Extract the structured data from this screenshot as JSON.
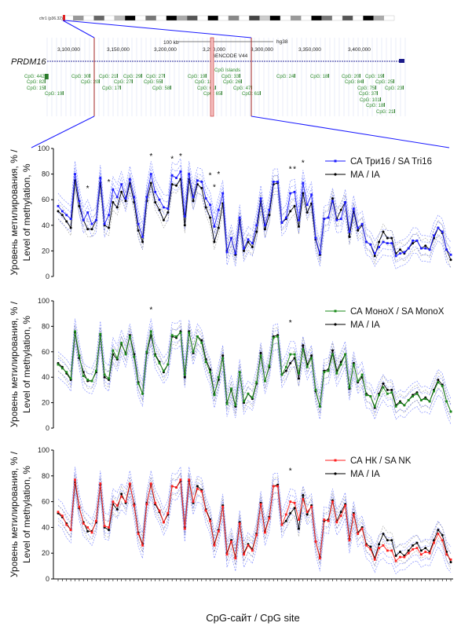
{
  "browser": {
    "chrom_label": "chr1 (p36.32)",
    "gene": "PRDM16",
    "scale_label": "100 kb",
    "assembly": "hg38",
    "gencode": "GENCODE V44",
    "cpg_track": "CpG Islands",
    "positions": [
      "3,100,000",
      "3,150,000",
      "3,200,000",
      "3,250,000",
      "3,300,000",
      "3,350,000",
      "3,400,000"
    ],
    "cpg_labels": [
      "CpG: 442",
      "CpG: 82",
      "CpG: 15",
      "CpG: 19",
      "CpG: 30",
      "CpG: 20",
      "CpG: 21",
      "CpG: 17",
      "CpG: 29",
      "CpG: 27",
      "CpG: 27",
      "CpG: 55",
      "CpG: 58",
      "CpG: 19",
      "CpG: 18",
      "CpG: 61",
      "CpG: 65",
      "CpG: 33",
      "CpG: 26",
      "CpG: 47",
      "CpG: 61",
      "CpG: 24",
      "CpG: 18",
      "CpG: 20",
      "CpG: 84",
      "CpG: 75",
      "CpG: 37",
      "CpG: 101",
      "CpG: 18",
      "CpG: 21",
      "CpG: 19",
      "CpG: 25",
      "CpG: 23"
    ]
  },
  "y_axis_label_ru": "Уровень метилирования, %  /",
  "y_axis_label_en": "Level of methylation, %",
  "x_axis_label": "CpG-сайт / CpG site",
  "colors": {
    "ma": "#000000",
    "tri16": "#1a1aff",
    "monox": "#1a8a1a",
    "nk": "#ff2020",
    "ci": "#4a5aff"
  },
  "chart_data": [
    {
      "type": "line",
      "ylim": [
        0,
        100
      ],
      "yticks": [
        0,
        20,
        40,
        60,
        80,
        100
      ],
      "legend_position": "top-right",
      "series": [
        {
          "name": "СА Три16 / SA Tri16",
          "values": [
            55,
            51,
            48,
            45,
            80,
            59,
            44,
            50,
            41,
            44,
            77,
            41,
            48,
            68,
            62,
            72,
            61,
            76,
            62,
            41,
            31,
            62,
            80,
            66,
            60,
            54,
            53,
            79,
            77,
            82,
            47,
            80,
            62,
            75,
            74,
            61,
            56,
            39,
            52,
            65,
            19,
            30,
            18,
            46,
            22,
            29,
            26,
            40,
            61,
            40,
            52,
            74,
            74,
            42,
            46,
            65,
            66,
            44,
            73,
            56,
            64,
            30,
            18,
            45,
            46,
            59,
            44,
            45,
            58,
            35,
            53,
            38,
            41,
            27,
            25,
            18,
            23,
            27,
            26,
            26,
            16,
            18,
            19,
            22,
            28,
            28,
            22,
            22,
            21,
            32,
            38,
            35,
            21,
            17
          ]
        },
        {
          "name": "МА / IA",
          "values": [
            51,
            48,
            43,
            38,
            75,
            55,
            44,
            37,
            37,
            44,
            73,
            40,
            38,
            58,
            54,
            66,
            59,
            73,
            58,
            36,
            27,
            59,
            73,
            58,
            52,
            44,
            50,
            72,
            71,
            76,
            40,
            76,
            59,
            72,
            69,
            54,
            46,
            27,
            38,
            57,
            20,
            30,
            17,
            44,
            20,
            27,
            23,
            35,
            59,
            37,
            48,
            72,
            73,
            42,
            45,
            51,
            55,
            39,
            65,
            50,
            57,
            29,
            17,
            45,
            46,
            61,
            45,
            52,
            58,
            31,
            51,
            36,
            40,
            27,
            25,
            16,
            27,
            35,
            30,
            30,
            18,
            21,
            18,
            22,
            26,
            28,
            22,
            24,
            21,
            30,
            38,
            34,
            21,
            13
          ]
        }
      ],
      "significance_marks": [
        {
          "site": 8,
          "y": 70,
          "label": "*"
        },
        {
          "site": 13,
          "y": 75,
          "label": "*"
        },
        {
          "site": 23,
          "y": 95,
          "label": "*"
        },
        {
          "site": 28,
          "y": 93,
          "label": "*"
        },
        {
          "site": 30,
          "y": 95,
          "label": "*"
        },
        {
          "site": 37,
          "y": 80,
          "label": "*"
        },
        {
          "site": 38,
          "y": 71,
          "label": "*"
        },
        {
          "site": 39,
          "y": 81,
          "label": "*"
        },
        {
          "site": 56,
          "y": 85,
          "label": "*"
        },
        {
          "site": 57,
          "y": 85,
          "label": "*"
        },
        {
          "site": 59,
          "y": 90,
          "label": "*"
        }
      ]
    },
    {
      "type": "line",
      "ylim": [
        0,
        100
      ],
      "yticks": [
        0,
        20,
        40,
        60,
        80,
        100
      ],
      "legend_position": "top-right",
      "series": [
        {
          "name": "СА МоноХ / SA MonoX",
          "values": [
            50,
            47,
            44,
            39,
            76,
            57,
            41,
            38,
            37,
            45,
            74,
            42,
            39,
            61,
            55,
            67,
            58,
            72,
            56,
            35,
            27,
            60,
            76,
            57,
            51,
            45,
            50,
            73,
            72,
            75,
            42,
            75,
            60,
            72,
            67,
            52,
            44,
            26,
            40,
            55,
            19,
            31,
            18,
            44,
            21,
            27,
            24,
            36,
            57,
            37,
            49,
            71,
            72,
            42,
            48,
            58,
            58,
            43,
            62,
            48,
            55,
            30,
            17,
            44,
            45,
            58,
            43,
            50,
            58,
            32,
            50,
            37,
            42,
            26,
            25,
            17,
            26,
            32,
            27,
            28,
            17,
            20,
            18,
            22,
            25,
            27,
            22,
            23,
            21,
            29,
            36,
            33,
            21,
            13
          ]
        },
        {
          "name": "МА / IA",
          "values": [
            51,
            48,
            43,
            38,
            75,
            55,
            44,
            37,
            37,
            44,
            73,
            40,
            38,
            58,
            54,
            66,
            59,
            73,
            58,
            36,
            27,
            59,
            73,
            58,
            52,
            44,
            50,
            72,
            71,
            76,
            40,
            76,
            59,
            72,
            69,
            54,
            46,
            27,
            38,
            57,
            20,
            30,
            17,
            44,
            20,
            27,
            23,
            35,
            59,
            37,
            48,
            72,
            73,
            42,
            45,
            51,
            55,
            39,
            65,
            50,
            57,
            29,
            17,
            45,
            46,
            61,
            45,
            52,
            58,
            31,
            51,
            36,
            40,
            27,
            25,
            16,
            27,
            35,
            30,
            30,
            18,
            21,
            18,
            22,
            26,
            28,
            22,
            24,
            21,
            30,
            38,
            34,
            21,
            13
          ]
        }
      ],
      "significance_marks": [
        {
          "site": 23,
          "y": 94,
          "label": "*"
        },
        {
          "site": 56,
          "y": 84,
          "label": "*"
        }
      ]
    },
    {
      "type": "line",
      "ylim": [
        0,
        100
      ],
      "yticks": [
        0,
        20,
        40,
        60,
        80,
        100
      ],
      "legend_position": "top-right",
      "series": [
        {
          "name": "СА НК / SA NK",
          "values": [
            52,
            49,
            42,
            38,
            77,
            56,
            43,
            40,
            36,
            45,
            74,
            41,
            40,
            60,
            57,
            64,
            60,
            74,
            57,
            35,
            26,
            58,
            74,
            59,
            53,
            44,
            51,
            72,
            71,
            77,
            39,
            77,
            60,
            70,
            68,
            53,
            45,
            26,
            37,
            56,
            19,
            29,
            16,
            43,
            19,
            26,
            22,
            34,
            58,
            36,
            47,
            72,
            72,
            42,
            50,
            60,
            59,
            46,
            62,
            52,
            56,
            29,
            16,
            46,
            45,
            60,
            44,
            49,
            57,
            30,
            50,
            35,
            39,
            26,
            23,
            15,
            24,
            26,
            22,
            22,
            14,
            17,
            17,
            20,
            23,
            24,
            19,
            21,
            20,
            28,
            35,
            30,
            19,
            15
          ]
        },
        {
          "name": "МА / IA",
          "values": [
            51,
            48,
            43,
            38,
            75,
            55,
            44,
            37,
            37,
            44,
            73,
            40,
            38,
            58,
            54,
            66,
            59,
            73,
            58,
            36,
            27,
            59,
            73,
            58,
            52,
            44,
            50,
            72,
            71,
            76,
            40,
            76,
            59,
            72,
            69,
            54,
            46,
            27,
            38,
            57,
            20,
            30,
            17,
            44,
            20,
            27,
            23,
            35,
            59,
            37,
            48,
            72,
            73,
            42,
            45,
            51,
            55,
            39,
            65,
            50,
            57,
            29,
            17,
            45,
            46,
            61,
            45,
            52,
            58,
            31,
            51,
            36,
            40,
            27,
            25,
            16,
            27,
            35,
            30,
            30,
            18,
            21,
            18,
            22,
            26,
            28,
            22,
            24,
            21,
            30,
            38,
            34,
            21,
            13
          ]
        }
      ],
      "significance_marks": [
        {
          "site": 56,
          "y": 85,
          "label": "*"
        }
      ]
    }
  ]
}
